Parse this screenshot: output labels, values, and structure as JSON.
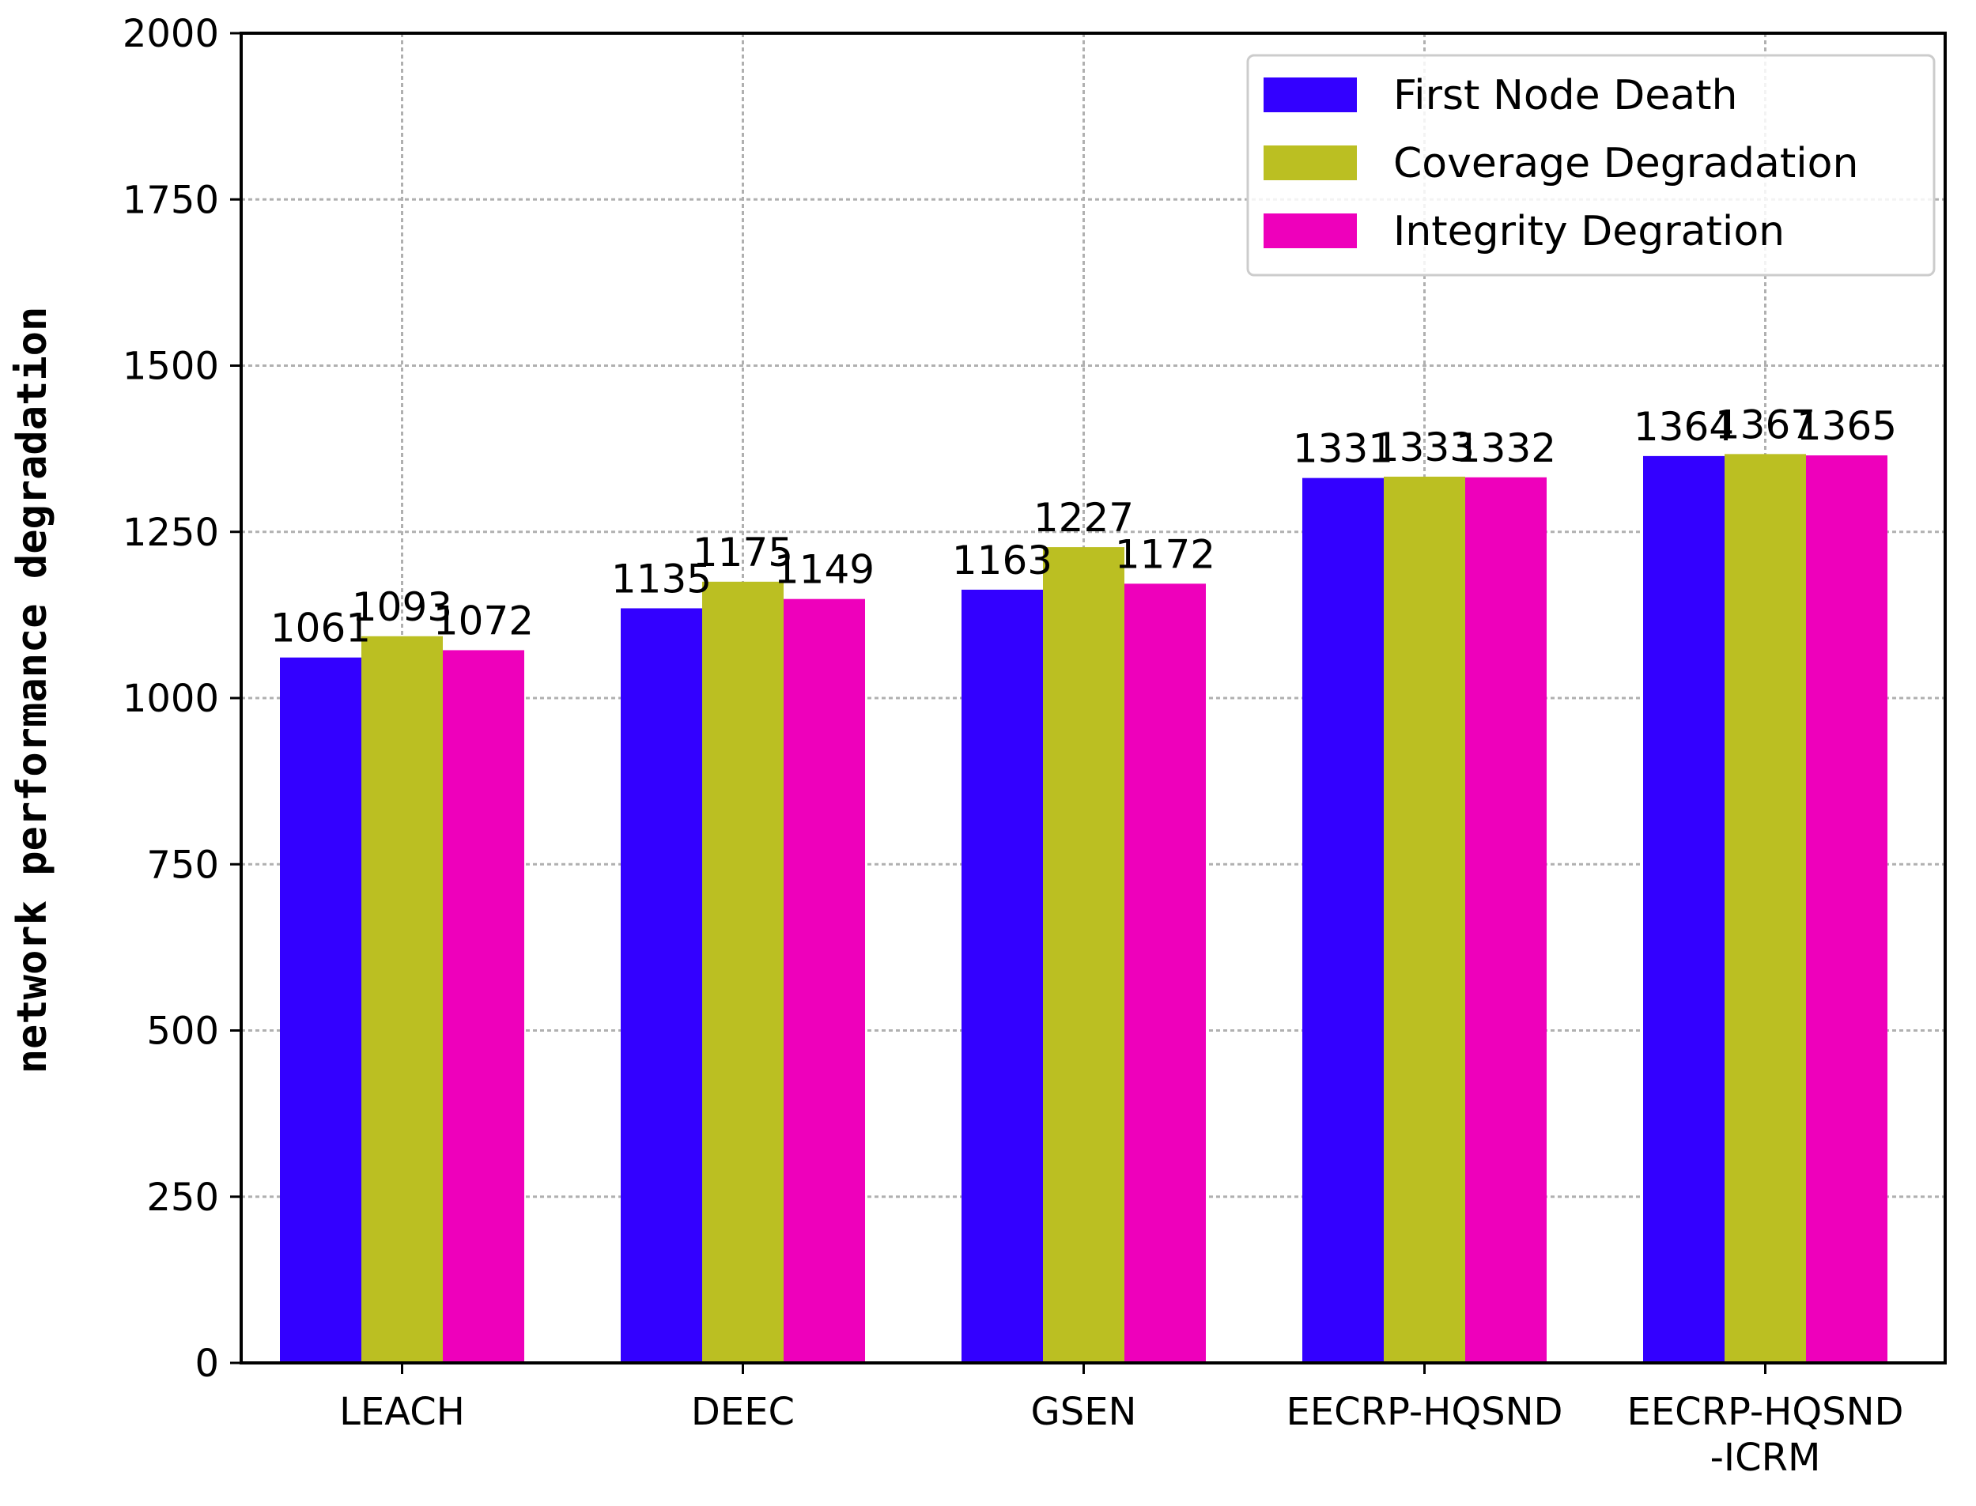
{
  "chart_data": {
    "type": "bar",
    "categories": [
      "LEACH",
      "DEEC",
      "GSEN",
      "EECRP-HQSND",
      "EECRP-HQSND\n-ICRM"
    ],
    "series": [
      {
        "name": "First Node Death",
        "color": "#3300ff",
        "values": [
          1061,
          1135,
          1163,
          1331,
          1364
        ]
      },
      {
        "name": "Coverage Degradation",
        "color": "#bbbf22",
        "values": [
          1093,
          1175,
          1227,
          1333,
          1367
        ]
      },
      {
        "name": "Integrity Degration",
        "color": "#ee00bb",
        "values": [
          1072,
          1149,
          1172,
          1332,
          1365
        ]
      }
    ],
    "xlabel": "",
    "ylabel": "network performance degradation",
    "ylim": [
      0,
      2000
    ],
    "yticks": [
      0,
      250,
      500,
      750,
      1000,
      1250,
      1500,
      1750,
      2000
    ],
    "grid": true,
    "legend_position": "top-right"
  }
}
